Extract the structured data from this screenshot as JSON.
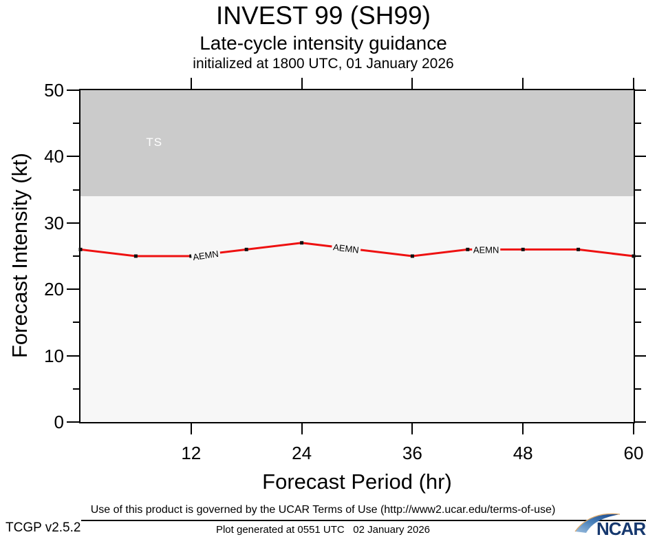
{
  "header": {
    "title": "INVEST 99 (SH99)",
    "subtitle": "Late-cycle intensity guidance",
    "init_line": "initialized at 1800 UTC, 01 January 2026"
  },
  "chart_data": {
    "type": "line",
    "title": "INVEST 99 (SH99)",
    "xlabel": "Forecast Period (hr)",
    "ylabel": "Forecast Intensity (kt)",
    "xlim": [
      0,
      60
    ],
    "ylim": [
      0,
      50
    ],
    "x_ticks": [
      12,
      24,
      36,
      48,
      60
    ],
    "y_ticks": [
      0,
      10,
      20,
      30,
      40,
      50
    ],
    "y_minor_ticks": [
      5,
      15,
      25,
      35,
      45
    ],
    "grid": false,
    "plot_background": "#f7f7f7",
    "x": [
      0,
      6,
      12,
      18,
      24,
      30,
      36,
      42,
      48,
      54,
      60
    ],
    "series": [
      {
        "name": "AEMN",
        "color": "#ee1111",
        "marker_color": "#111111",
        "values": [
          26,
          25,
          25,
          26,
          27,
          26,
          25,
          26,
          26,
          26,
          25
        ]
      }
    ],
    "threshold_band": {
      "label": "TS",
      "from": 34,
      "to": 50,
      "color": "#cbcbcb",
      "label_x": 8,
      "label_y": 42
    },
    "line_labels": [
      {
        "text": "AEMN",
        "x": 13.6,
        "y": 25.1,
        "rot": -8
      },
      {
        "text": "AEMN",
        "x": 28.8,
        "y": 26.1,
        "rot": 7
      },
      {
        "text": "AEMN",
        "x": 44.0,
        "y": 25.9,
        "rot": 0
      }
    ]
  },
  "footer": {
    "terms": "Use of this product is governed by the UCAR Terms of Use (http://www2.ucar.edu/terms-of-use)",
    "app_version": "TCGP v2.5.2",
    "generated": "Plot generated at 0551 UTC   02 January 2026",
    "logo_text": "NCAR",
    "logo_color": "#16386e"
  }
}
